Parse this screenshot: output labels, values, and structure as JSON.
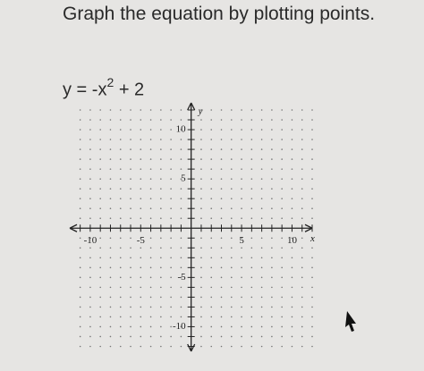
{
  "instruction": "Graph the equation by plotting points.",
  "equation": {
    "base": "y = -x",
    "exponent": "2",
    "rest": "+ 2"
  },
  "graph": {
    "x_label": "x",
    "y_label": "y",
    "xlim": [
      -11.5,
      12
    ],
    "ylim": [
      -12.5,
      12
    ],
    "x_ticks": [
      -10,
      -5,
      5,
      10
    ],
    "y_ticks": [
      10,
      5,
      -5,
      -10
    ]
  }
}
